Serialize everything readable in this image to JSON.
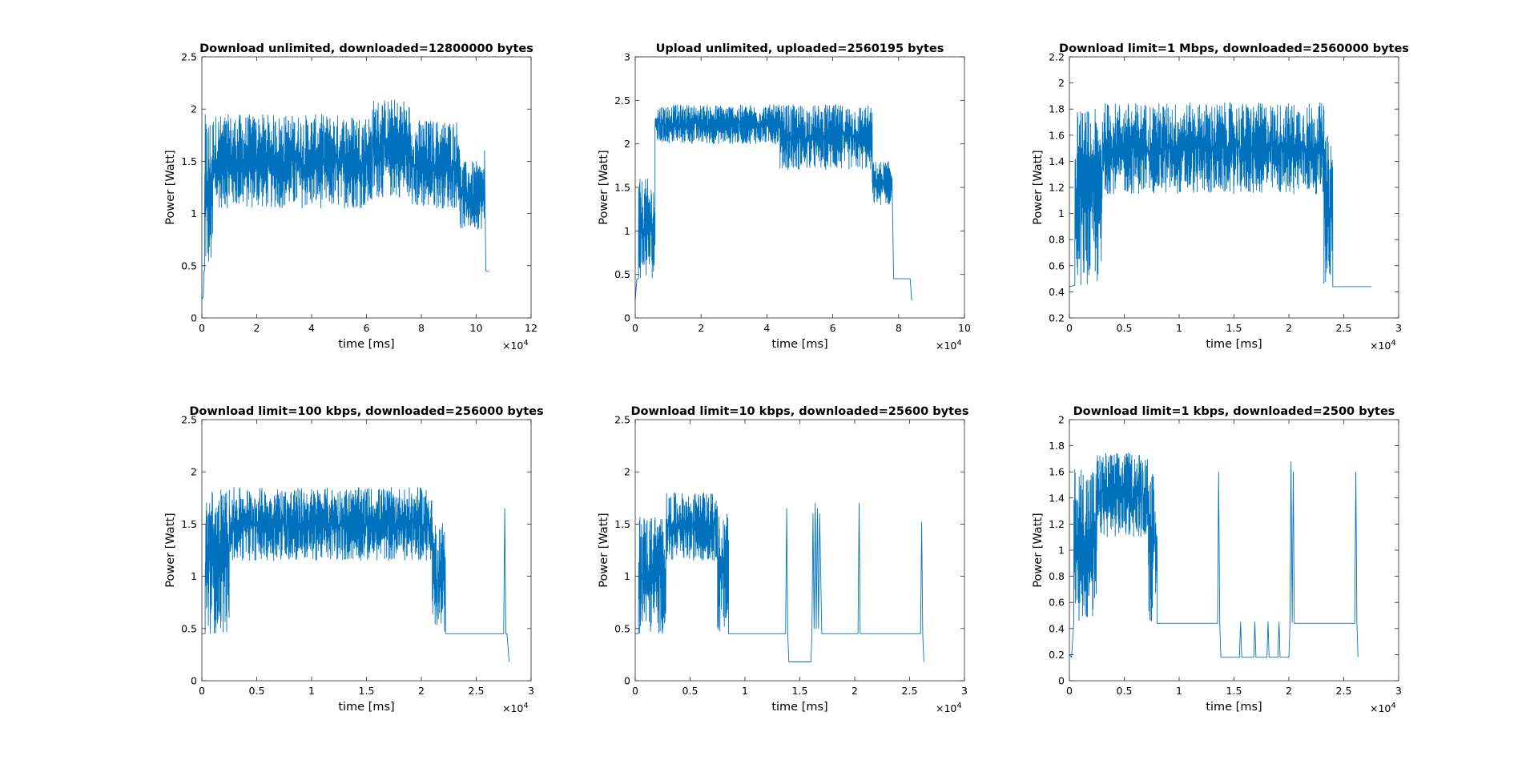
{
  "figure": {
    "background": "#ffffff",
    "line_color": "#0072bd"
  },
  "chart_data": [
    {
      "type": "line",
      "title": "Download unlimited, downloaded=12800000 bytes",
      "xlabel": "time [ms]",
      "ylabel": "Power [Watt]",
      "x_exponent": "×10",
      "x_exponent_power": "4",
      "xlim": [
        0,
        12
      ],
      "ylim": [
        0,
        2.5
      ],
      "xticks": [
        0,
        2,
        4,
        6,
        8,
        10,
        12
      ],
      "xticklabels": [
        "0",
        "2",
        "4",
        "6",
        "8",
        "10",
        "12"
      ],
      "yticks": [
        0,
        0.5,
        1,
        1.5,
        2,
        2.5
      ],
      "yticklabels": [
        "0",
        "0.5",
        "1",
        "1.5",
        "2",
        "2.5"
      ],
      "series": [
        {
          "segments": [
            {
              "kind": "line",
              "x": [
                0,
                0.05,
                0.08,
                0.1
              ],
              "y": [
                0.18,
                0.2,
                0.45,
                0.45
              ]
            },
            {
              "kind": "noise",
              "x_start": 0.1,
              "x_end": 0.4,
              "low": 0.45,
              "high": 1.95
            },
            {
              "kind": "noise",
              "x_start": 0.4,
              "x_end": 6.2,
              "low": 1.05,
              "high": 1.95
            },
            {
              "kind": "noise",
              "x_start": 6.2,
              "x_end": 7.6,
              "low": 1.15,
              "high": 2.1
            },
            {
              "kind": "noise",
              "x_start": 7.6,
              "x_end": 9.4,
              "low": 1.05,
              "high": 1.9
            },
            {
              "kind": "noise",
              "x_start": 9.4,
              "x_end": 10.3,
              "low": 0.85,
              "high": 1.5
            },
            {
              "kind": "line",
              "x": [
                10.3,
                10.35,
                10.45
              ],
              "y": [
                1.6,
                0.45,
                0.45
              ]
            }
          ]
        }
      ]
    },
    {
      "type": "line",
      "title": "Upload unlimited, uploaded=2560195 bytes",
      "xlabel": "time [ms]",
      "ylabel": "Power [Watt]",
      "x_exponent": "×10",
      "x_exponent_power": "4",
      "xlim": [
        0,
        10
      ],
      "ylim": [
        0,
        3
      ],
      "xticks": [
        0,
        2,
        4,
        6,
        8,
        10
      ],
      "xticklabels": [
        "0",
        "2",
        "4",
        "6",
        "8",
        "10"
      ],
      "yticks": [
        0,
        0.5,
        1,
        1.5,
        2,
        2.5,
        3
      ],
      "yticklabels": [
        "0",
        "0.5",
        "1",
        "1.5",
        "2",
        "2.5",
        "3"
      ],
      "series": [
        {
          "segments": [
            {
              "kind": "line",
              "x": [
                0,
                0.05,
                0.1
              ],
              "y": [
                0.2,
                0.45,
                0.45
              ]
            },
            {
              "kind": "noise",
              "x_start": 0.1,
              "x_end": 0.6,
              "low": 0.45,
              "high": 1.6
            },
            {
              "kind": "noise",
              "x_start": 0.6,
              "x_end": 4.4,
              "low": 2.0,
              "high": 2.45
            },
            {
              "kind": "noise",
              "x_start": 4.4,
              "x_end": 7.2,
              "low": 1.7,
              "high": 2.45
            },
            {
              "kind": "noise",
              "x_start": 7.2,
              "x_end": 7.8,
              "low": 1.3,
              "high": 1.8
            },
            {
              "kind": "line",
              "x": [
                7.8,
                7.85,
                8.35,
                8.4,
                8.4
              ],
              "y": [
                1.6,
                0.45,
                0.45,
                0.2,
                0.2
              ]
            }
          ]
        }
      ]
    },
    {
      "type": "line",
      "title": "Download limit=1 Mbps, downloaded=2560000 bytes",
      "xlabel": "time [ms]",
      "ylabel": "Power [Watt]",
      "x_exponent": "×10",
      "x_exponent_power": "4",
      "xlim": [
        0,
        3
      ],
      "ylim": [
        0.2,
        2.2
      ],
      "xticks": [
        0,
        0.5,
        1,
        1.5,
        2,
        2.5,
        3
      ],
      "xticklabels": [
        "0",
        "0.5",
        "1",
        "1.5",
        "2",
        "2.5",
        "3"
      ],
      "yticks": [
        0.2,
        0.4,
        0.6,
        0.8,
        1,
        1.2,
        1.4,
        1.6,
        1.8,
        2,
        2.2
      ],
      "yticklabels": [
        "0.2",
        "0.4",
        "0.6",
        "0.8",
        "1",
        "1.2",
        "1.4",
        "1.6",
        "1.8",
        "2",
        "2.2"
      ],
      "series": [
        {
          "segments": [
            {
              "kind": "line",
              "x": [
                0,
                0.05
              ],
              "y": [
                0.44,
                0.45
              ]
            },
            {
              "kind": "noise",
              "x_start": 0.05,
              "x_end": 0.3,
              "low": 0.45,
              "high": 1.8
            },
            {
              "kind": "noise",
              "x_start": 0.3,
              "x_end": 2.32,
              "low": 1.15,
              "high": 1.85
            },
            {
              "kind": "noise",
              "x_start": 2.32,
              "x_end": 2.4,
              "low": 0.45,
              "high": 1.6
            },
            {
              "kind": "line",
              "x": [
                2.4,
                2.75
              ],
              "y": [
                0.44,
                0.44
              ]
            }
          ]
        }
      ]
    },
    {
      "type": "line",
      "title": "Download limit=100 kbps, downloaded=256000 bytes",
      "xlabel": "time [ms]",
      "ylabel": "Power [Watt]",
      "x_exponent": "×10",
      "x_exponent_power": "4",
      "xlim": [
        0,
        3
      ],
      "ylim": [
        0,
        2.5
      ],
      "xticks": [
        0,
        0.5,
        1,
        1.5,
        2,
        2.5,
        3
      ],
      "xticklabels": [
        "0",
        "0.5",
        "1",
        "1.5",
        "2",
        "2.5",
        "3"
      ],
      "yticks": [
        0,
        0.5,
        1,
        1.5,
        2,
        2.5
      ],
      "yticklabels": [
        "0",
        "0.5",
        "1",
        "1.5",
        "2",
        "2.5"
      ],
      "series": [
        {
          "segments": [
            {
              "kind": "line",
              "x": [
                0,
                0.03
              ],
              "y": [
                0.45,
                0.45
              ]
            },
            {
              "kind": "noise",
              "x_start": 0.03,
              "x_end": 0.25,
              "low": 0.45,
              "high": 1.85
            },
            {
              "kind": "noise",
              "x_start": 0.25,
              "x_end": 2.1,
              "low": 1.15,
              "high": 1.85
            },
            {
              "kind": "noise",
              "x_start": 2.1,
              "x_end": 2.22,
              "low": 0.45,
              "high": 1.55
            },
            {
              "kind": "line",
              "x": [
                2.22,
                2.75,
                2.76,
                2.77,
                2.78,
                2.8
              ],
              "y": [
                0.45,
                0.45,
                1.65,
                0.45,
                0.45,
                0.18
              ]
            }
          ]
        }
      ]
    },
    {
      "type": "line",
      "title": "Download limit=10 kbps, downloaded=25600 bytes",
      "xlabel": "time [ms]",
      "ylabel": "Power [Watt]",
      "x_exponent": "×10",
      "x_exponent_power": "4",
      "xlim": [
        0,
        3
      ],
      "ylim": [
        0,
        2.5
      ],
      "xticks": [
        0,
        0.5,
        1,
        1.5,
        2,
        2.5,
        3
      ],
      "xticklabels": [
        "0",
        "0.5",
        "1",
        "1.5",
        "2",
        "2.5",
        "3"
      ],
      "yticks": [
        0,
        0.5,
        1,
        1.5,
        2,
        2.5
      ],
      "yticklabels": [
        "0",
        "0.5",
        "1",
        "1.5",
        "2",
        "2.5"
      ],
      "series": [
        {
          "segments": [
            {
              "kind": "line",
              "x": [
                0,
                0.03
              ],
              "y": [
                0.45,
                0.45
              ]
            },
            {
              "kind": "noise",
              "x_start": 0.03,
              "x_end": 0.28,
              "low": 0.45,
              "high": 1.6
            },
            {
              "kind": "noise",
              "x_start": 0.28,
              "x_end": 0.75,
              "low": 1.15,
              "high": 1.8
            },
            {
              "kind": "noise",
              "x_start": 0.75,
              "x_end": 0.85,
              "low": 0.45,
              "high": 1.6
            },
            {
              "kind": "line",
              "x": [
                0.85,
                1.37,
                1.38,
                1.39,
                1.4,
                1.6,
                1.61,
                1.62,
                1.63,
                1.64,
                1.65,
                1.66,
                1.67,
                1.68,
                1.7,
                2.03,
                2.04,
                2.05,
                2.6,
                2.61,
                2.62,
                2.63
              ],
              "y": [
                0.45,
                0.45,
                1.65,
                0.45,
                0.18,
                0.18,
                0.45,
                1.6,
                0.5,
                1.7,
                0.5,
                1.65,
                0.5,
                1.6,
                0.45,
                0.45,
                1.7,
                0.45,
                0.45,
                1.52,
                0.45,
                0.18
              ]
            }
          ]
        }
      ]
    },
    {
      "type": "line",
      "title": "Download limit=1 kbps, downloaded=2500 bytes",
      "xlabel": "time [ms]",
      "ylabel": "Power [Watt]",
      "x_exponent": "×10",
      "x_exponent_power": "4",
      "xlim": [
        0,
        3
      ],
      "ylim": [
        0,
        2
      ],
      "xticks": [
        0,
        0.5,
        1,
        1.5,
        2,
        2.5,
        3
      ],
      "xticklabels": [
        "0",
        "0.5",
        "1",
        "1.5",
        "2",
        "2.5",
        "3"
      ],
      "yticks": [
        0,
        0.2,
        0.4,
        0.6,
        0.8,
        1,
        1.2,
        1.4,
        1.6,
        1.8,
        2
      ],
      "yticklabels": [
        "0",
        "0.2",
        "0.4",
        "0.6",
        "0.8",
        "1",
        "1.2",
        "1.4",
        "1.6",
        "1.8",
        "2"
      ],
      "series": [
        {
          "segments": [
            {
              "kind": "line",
              "x": [
                0,
                0.02,
                0.04
              ],
              "y": [
                0.2,
                0.18,
                0.45
              ]
            },
            {
              "kind": "noise",
              "x_start": 0.04,
              "x_end": 0.25,
              "low": 0.45,
              "high": 1.65
            },
            {
              "kind": "noise",
              "x_start": 0.25,
              "x_end": 0.72,
              "low": 1.1,
              "high": 1.75
            },
            {
              "kind": "noise",
              "x_start": 0.72,
              "x_end": 0.8,
              "low": 0.45,
              "high": 1.6
            },
            {
              "kind": "line",
              "x": [
                0.8,
                1.35,
                1.36,
                1.37,
                1.38,
                1.55,
                1.56,
                1.57,
                1.68,
                1.69,
                1.7,
                1.8,
                1.81,
                1.82,
                1.9,
                1.91,
                1.92,
                2.0,
                2.01,
                2.02,
                2.03,
                2.04,
                2.05,
                2.6,
                2.61,
                2.62,
                2.63
              ],
              "y": [
                0.44,
                0.44,
                1.6,
                0.44,
                0.18,
                0.18,
                0.45,
                0.18,
                0.18,
                0.45,
                0.18,
                0.18,
                0.45,
                0.18,
                0.18,
                0.45,
                0.18,
                0.18,
                0.45,
                1.68,
                0.45,
                1.6,
                0.44,
                0.44,
                1.6,
                0.44,
                0.18
              ]
            }
          ]
        }
      ]
    }
  ]
}
